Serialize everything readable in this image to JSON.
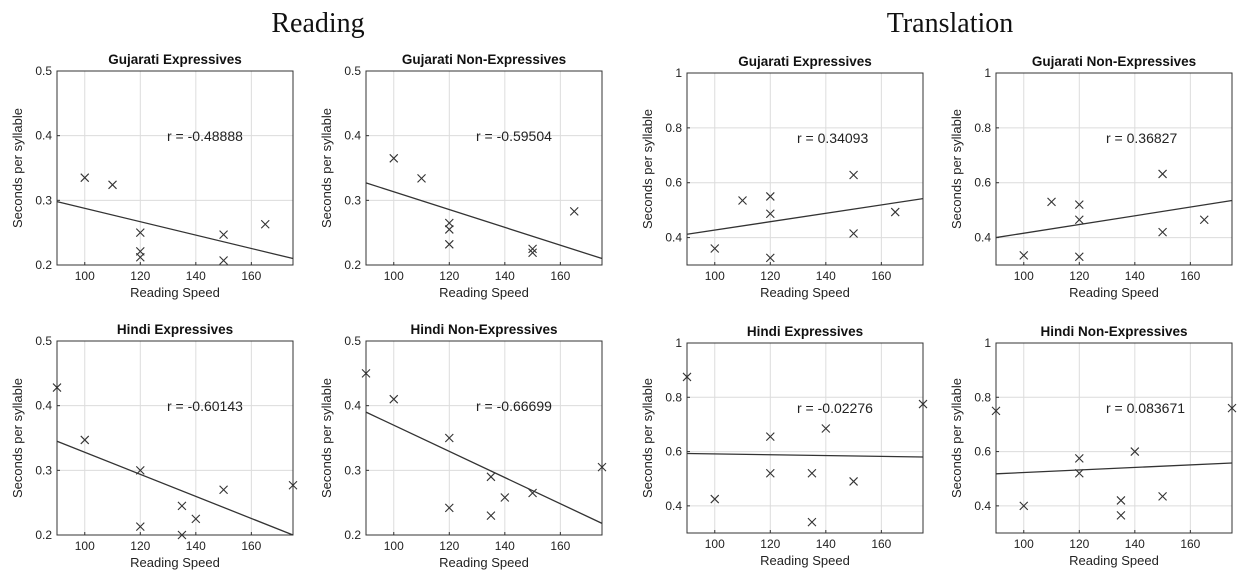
{
  "groups": [
    {
      "title": "Reading"
    },
    {
      "title": "Translation"
    }
  ],
  "chart_data": [
    {
      "type": "scatter",
      "group": "Reading",
      "title": "Gujarati Expressives",
      "xlabel": "Reading Speed",
      "ylabel": "Seconds per syllable",
      "xlim": [
        90,
        175
      ],
      "ylim": [
        0.2,
        0.5
      ],
      "xticks": [
        100,
        120,
        140,
        160
      ],
      "yticks": [
        0.2,
        0.3,
        0.4,
        0.5
      ],
      "grid": true,
      "x": [
        100,
        110,
        120,
        120,
        120,
        150,
        150,
        165
      ],
      "y": [
        0.335,
        0.324,
        0.25,
        0.221,
        0.212,
        0.247,
        0.207,
        0.263
      ],
      "fit_line": {
        "x": [
          90,
          175
        ],
        "y": [
          0.298,
          0.21
        ]
      },
      "annotation": "r = -0.48888"
    },
    {
      "type": "scatter",
      "group": "Reading",
      "title": "Gujarati Non-Expressives",
      "xlabel": "Reading Speed",
      "ylabel": "Seconds per syllable",
      "xlim": [
        90,
        175
      ],
      "ylim": [
        0.2,
        0.5
      ],
      "xticks": [
        100,
        120,
        140,
        160
      ],
      "yticks": [
        0.2,
        0.3,
        0.4,
        0.5
      ],
      "grid": true,
      "x": [
        100,
        110,
        120,
        120,
        120,
        150,
        150,
        165
      ],
      "y": [
        0.365,
        0.334,
        0.265,
        0.255,
        0.232,
        0.225,
        0.219,
        0.283
      ],
      "fit_line": {
        "x": [
          90,
          175
        ],
        "y": [
          0.327,
          0.21
        ]
      },
      "annotation": "r = -0.59504"
    },
    {
      "type": "scatter",
      "group": "Translation",
      "title": "Gujarati Expressives",
      "xlabel": "Reading Speed",
      "ylabel": "Seconds per syllable",
      "xlim": [
        90,
        175
      ],
      "ylim": [
        0.3,
        1
      ],
      "xticks": [
        100,
        120,
        140,
        160
      ],
      "yticks": [
        0.4,
        0.6,
        0.8,
        1
      ],
      "grid": true,
      "x": [
        100,
        110,
        120,
        120,
        120,
        150,
        150,
        165
      ],
      "y": [
        0.36,
        0.535,
        0.55,
        0.487,
        0.326,
        0.628,
        0.415,
        0.493
      ],
      "fit_line": {
        "x": [
          90,
          175
        ],
        "y": [
          0.412,
          0.542
        ]
      },
      "annotation": "r = 0.34093"
    },
    {
      "type": "scatter",
      "group": "Translation",
      "title": "Gujarati Non-Expressives",
      "xlabel": "Reading Speed",
      "ylabel": "Seconds per syllable",
      "xlim": [
        90,
        175
      ],
      "ylim": [
        0.3,
        1
      ],
      "xticks": [
        100,
        120,
        140,
        160
      ],
      "yticks": [
        0.4,
        0.6,
        0.8,
        1
      ],
      "grid": true,
      "x": [
        100,
        110,
        120,
        120,
        120,
        150,
        150,
        165
      ],
      "y": [
        0.335,
        0.53,
        0.52,
        0.465,
        0.33,
        0.632,
        0.42,
        0.465
      ],
      "fit_line": {
        "x": [
          90,
          175
        ],
        "y": [
          0.4,
          0.535
        ]
      },
      "annotation": "r = 0.36827"
    },
    {
      "type": "scatter",
      "group": "Reading",
      "title": "Hindi Expressives",
      "xlabel": "Reading Speed",
      "ylabel": "Seconds per syllable",
      "xlim": [
        90,
        175
      ],
      "ylim": [
        0.2,
        0.5
      ],
      "xticks": [
        100,
        120,
        140,
        160
      ],
      "yticks": [
        0.2,
        0.3,
        0.4,
        0.5
      ],
      "grid": true,
      "x": [
        90,
        100,
        120,
        120,
        135,
        135,
        140,
        150,
        175
      ],
      "y": [
        0.428,
        0.347,
        0.3,
        0.213,
        0.245,
        0.2,
        0.225,
        0.27,
        0.277
      ],
      "fit_line": {
        "x": [
          90,
          175
        ],
        "y": [
          0.345,
          0.2
        ]
      },
      "annotation": "r = -0.60143"
    },
    {
      "type": "scatter",
      "group": "Reading",
      "title": "Hindi Non-Expressives",
      "xlabel": "Reading Speed",
      "ylabel": "Seconds per syllable",
      "xlim": [
        90,
        175
      ],
      "ylim": [
        0.2,
        0.5
      ],
      "xticks": [
        100,
        120,
        140,
        160
      ],
      "yticks": [
        0.2,
        0.3,
        0.4,
        0.5
      ],
      "grid": true,
      "x": [
        90,
        100,
        120,
        120,
        135,
        135,
        140,
        150,
        175
      ],
      "y": [
        0.45,
        0.41,
        0.35,
        0.242,
        0.29,
        0.23,
        0.258,
        0.265,
        0.305
      ],
      "fit_line": {
        "x": [
          90,
          175
        ],
        "y": [
          0.39,
          0.218
        ]
      },
      "annotation": "r = -0.66699"
    },
    {
      "type": "scatter",
      "group": "Translation",
      "title": "Hindi Expressives",
      "xlabel": "Reading Speed",
      "ylabel": "Seconds per syllable",
      "xlim": [
        90,
        175
      ],
      "ylim": [
        0.3,
        1
      ],
      "xticks": [
        100,
        120,
        140,
        160
      ],
      "yticks": [
        0.4,
        0.6,
        0.8,
        1
      ],
      "grid": true,
      "x": [
        90,
        100,
        120,
        120,
        135,
        135,
        140,
        150,
        175
      ],
      "y": [
        0.875,
        0.425,
        0.655,
        0.52,
        0.52,
        0.34,
        0.685,
        0.49,
        0.775
      ],
      "fit_line": {
        "x": [
          90,
          175
        ],
        "y": [
          0.593,
          0.58
        ]
      },
      "annotation": "r = -0.02276"
    },
    {
      "type": "scatter",
      "group": "Translation",
      "title": "Hindi Non-Expressives",
      "xlabel": "Reading Speed",
      "ylabel": "Seconds per syllable",
      "xlim": [
        90,
        175
      ],
      "ylim": [
        0.3,
        1
      ],
      "xticks": [
        100,
        120,
        140,
        160
      ],
      "yticks": [
        0.4,
        0.6,
        0.8,
        1
      ],
      "grid": true,
      "x": [
        90,
        100,
        120,
        120,
        135,
        135,
        140,
        150,
        175
      ],
      "y": [
        0.75,
        0.4,
        0.575,
        0.52,
        0.42,
        0.365,
        0.6,
        0.435,
        0.76
      ],
      "fit_line": {
        "x": [
          90,
          175
        ],
        "y": [
          0.518,
          0.558
        ]
      },
      "annotation": "r = 0.083671"
    }
  ]
}
